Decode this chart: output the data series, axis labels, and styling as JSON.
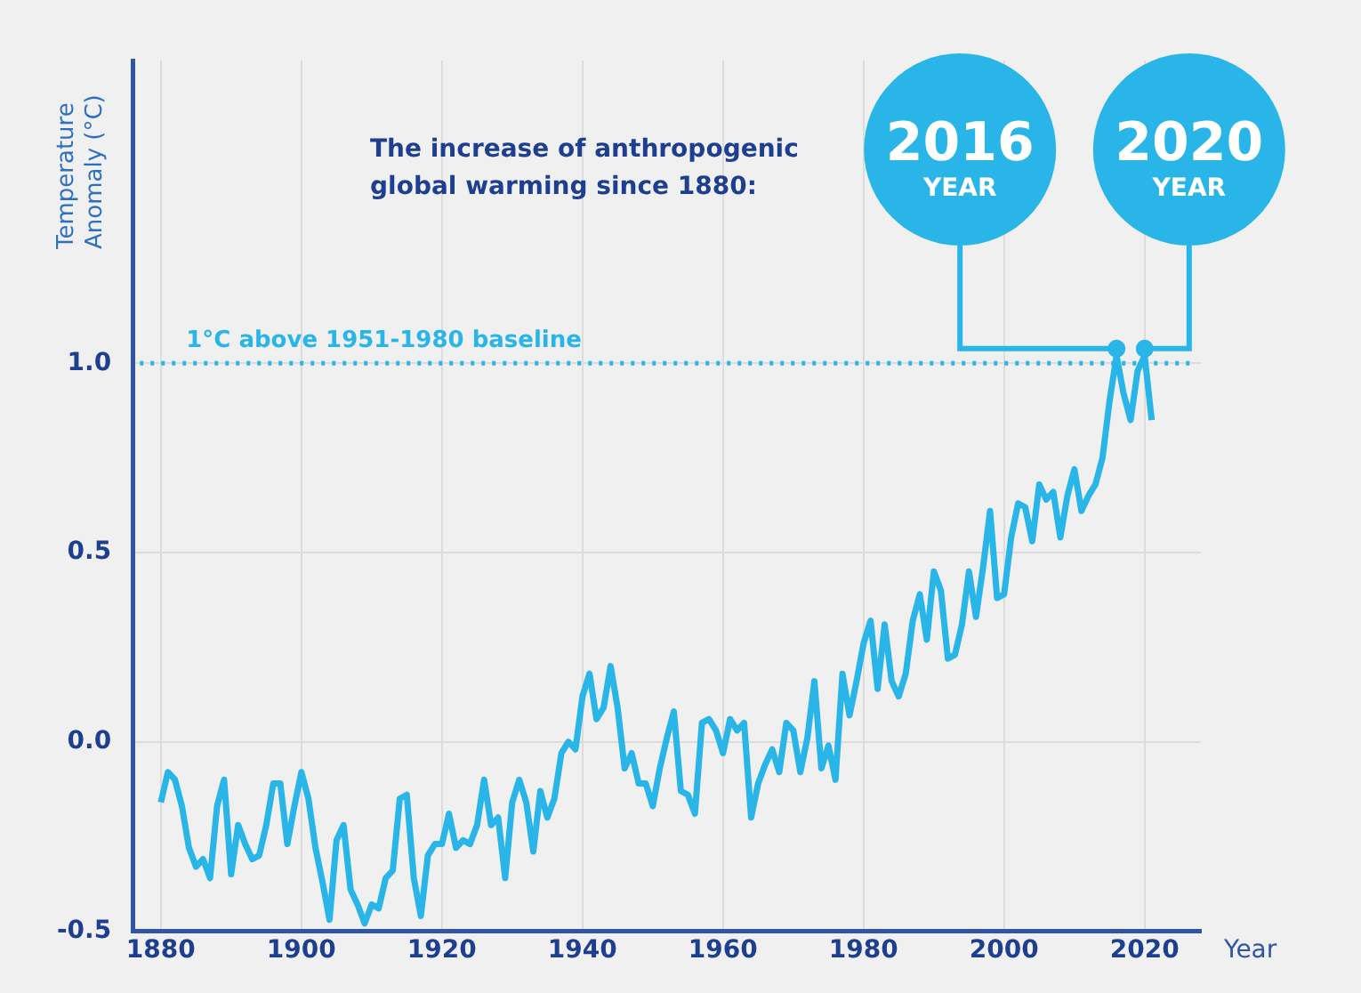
{
  "chart_data": {
    "type": "line",
    "title": "The increase of anthropogenic global warming since 1880:",
    "xlabel": "Year",
    "ylabel": "Temperature Anomaly (°C)",
    "x": [
      1880,
      1881,
      1882,
      1883,
      1884,
      1885,
      1886,
      1887,
      1888,
      1889,
      1890,
      1891,
      1892,
      1893,
      1894,
      1895,
      1896,
      1897,
      1898,
      1899,
      1900,
      1901,
      1902,
      1903,
      1904,
      1905,
      1906,
      1907,
      1908,
      1909,
      1910,
      1911,
      1912,
      1913,
      1914,
      1915,
      1916,
      1917,
      1918,
      1919,
      1920,
      1921,
      1922,
      1923,
      1924,
      1925,
      1926,
      1927,
      1928,
      1929,
      1930,
      1931,
      1932,
      1933,
      1934,
      1935,
      1936,
      1937,
      1938,
      1939,
      1940,
      1941,
      1942,
      1943,
      1944,
      1945,
      1946,
      1947,
      1948,
      1949,
      1950,
      1951,
      1952,
      1953,
      1954,
      1955,
      1956,
      1957,
      1958,
      1959,
      1960,
      1961,
      1962,
      1963,
      1964,
      1965,
      1966,
      1967,
      1968,
      1969,
      1970,
      1971,
      1972,
      1973,
      1974,
      1975,
      1976,
      1977,
      1978,
      1979,
      1980,
      1981,
      1982,
      1983,
      1984,
      1985,
      1986,
      1987,
      1988,
      1989,
      1990,
      1991,
      1992,
      1993,
      1994,
      1995,
      1996,
      1997,
      1998,
      1999,
      2000,
      2001,
      2002,
      2003,
      2004,
      2005,
      2006,
      2007,
      2008,
      2009,
      2010,
      2011,
      2012,
      2013,
      2014,
      2015,
      2016,
      2017,
      2018,
      2019,
      2020,
      2021
    ],
    "series": [
      {
        "color": "#29b5e8",
        "values": [
          -0.16,
          -0.08,
          -0.1,
          -0.17,
          -0.28,
          -0.33,
          -0.31,
          -0.36,
          -0.17,
          -0.1,
          -0.35,
          -0.22,
          -0.27,
          -0.31,
          -0.3,
          -0.22,
          -0.11,
          -0.11,
          -0.27,
          -0.17,
          -0.08,
          -0.15,
          -0.28,
          -0.37,
          -0.47,
          -0.26,
          -0.22,
          -0.39,
          -0.43,
          -0.48,
          -0.43,
          -0.44,
          -0.36,
          -0.34,
          -0.15,
          -0.14,
          -0.36,
          -0.46,
          -0.3,
          -0.27,
          -0.27,
          -0.19,
          -0.28,
          -0.26,
          -0.27,
          -0.22,
          -0.1,
          -0.22,
          -0.2,
          -0.36,
          -0.16,
          -0.1,
          -0.16,
          -0.29,
          -0.13,
          -0.2,
          -0.15,
          -0.03,
          0.0,
          -0.02,
          0.12,
          0.18,
          0.06,
          0.09,
          0.2,
          0.09,
          -0.07,
          -0.03,
          -0.11,
          -0.11,
          -0.17,
          -0.07,
          0.01,
          0.08,
          -0.13,
          -0.14,
          -0.19,
          0.05,
          0.06,
          0.03,
          -0.03,
          0.06,
          0.03,
          0.05,
          -0.2,
          -0.11,
          -0.06,
          -0.02,
          -0.08,
          0.05,
          0.03,
          -0.08,
          0.01,
          0.16,
          -0.07,
          -0.01,
          -0.1,
          0.18,
          0.07,
          0.16,
          0.26,
          0.32,
          0.14,
          0.31,
          0.16,
          0.12,
          0.18,
          0.32,
          0.39,
          0.27,
          0.45,
          0.4,
          0.22,
          0.23,
          0.31,
          0.45,
          0.33,
          0.46,
          0.61,
          0.38,
          0.39,
          0.54,
          0.63,
          0.62,
          0.53,
          0.68,
          0.64,
          0.66,
          0.54,
          0.65,
          0.72,
          0.61,
          0.65,
          0.68,
          0.75,
          0.9,
          1.02,
          0.92,
          0.85,
          0.98,
          1.02,
          0.85
        ]
      }
    ],
    "xlim": [
      1876,
      2028
    ],
    "xticks": [
      1880,
      1900,
      1920,
      1940,
      1960,
      1980,
      2000,
      2020
    ],
    "ylim": [
      -0.5,
      1.8
    ],
    "yticks": [
      -0.5,
      {
        "value": 0,
        "label": "0.0"
      },
      0.5,
      {
        "value": 1,
        "label": "1.0"
      }
    ],
    "grid": true,
    "marker": "none",
    "ref_lines": [
      {
        "axis": "y",
        "value": 1,
        "label": "1°C above 1951-1980 baseline",
        "color": "#29b5e8",
        "line_style": "dotted"
      }
    ],
    "annotations": [
      {
        "text": "2016 YEAR",
        "x": 2016,
        "y": 1.02
      },
      {
        "text": "2020 YEAR",
        "x": 2020,
        "y": 1.02
      }
    ]
  }
}
